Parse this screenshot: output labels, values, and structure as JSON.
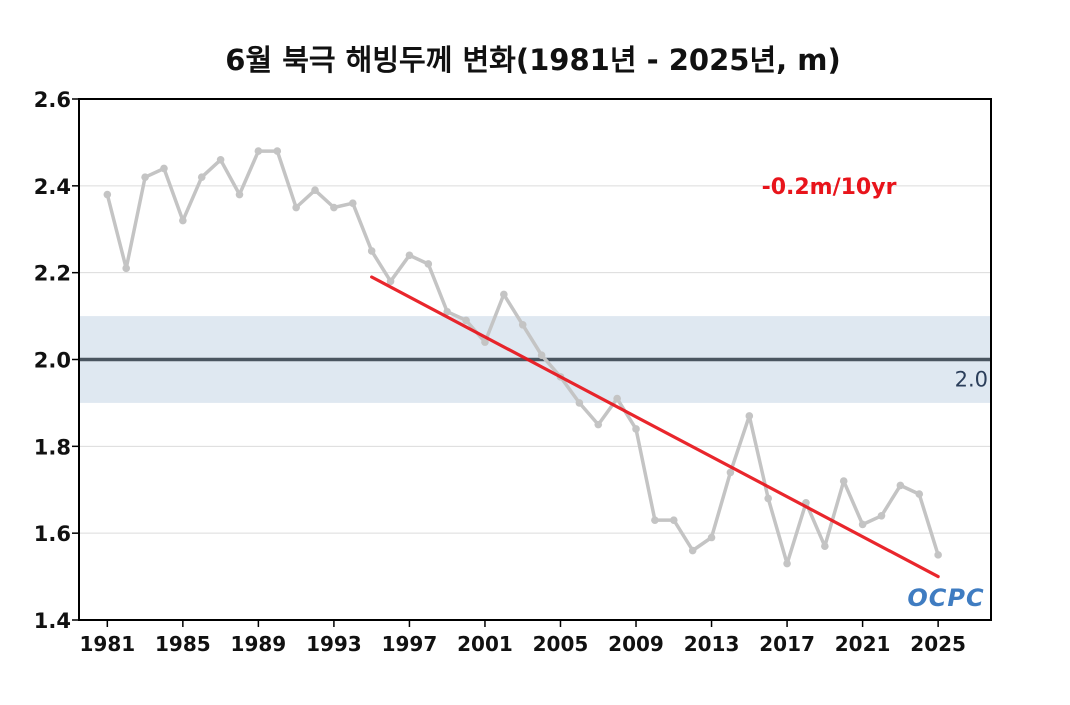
{
  "colors": {
    "series": "#c4c4c4",
    "trend": "#e8141b",
    "ref_line": "#4a5560",
    "band": "#dfe8f1",
    "grid": "#dcdcdc",
    "ref_label": "#2b3e5a",
    "logo": "#1e66b7"
  },
  "logo": {
    "text": "OCPC"
  },
  "chart_data": {
    "type": "line",
    "title": "6월 북극 해빙두께 변화(1981년 - 2025년, m)",
    "xlabel": "",
    "ylabel": "",
    "ylim": [
      1.4,
      2.6
    ],
    "xlim": [
      1979.5,
      2027.8
    ],
    "yticks": [
      "1.4",
      "1.6",
      "1.8",
      "2.0",
      "2.2",
      "2.4",
      "2.6"
    ],
    "xticks": [
      "1981",
      "1985",
      "1989",
      "1993",
      "1997",
      "2001",
      "2005",
      "2009",
      "2013",
      "2017",
      "2021",
      "2025"
    ],
    "grid": true,
    "x": [
      1981,
      1982,
      1983,
      1984,
      1985,
      1986,
      1987,
      1988,
      1989,
      1990,
      1991,
      1992,
      1993,
      1994,
      1995,
      1996,
      1997,
      1998,
      1999,
      2000,
      2001,
      2002,
      2003,
      2004,
      2005,
      2006,
      2007,
      2008,
      2009,
      2010,
      2011,
      2012,
      2013,
      2014,
      2015,
      2016,
      2017,
      2018,
      2019,
      2020,
      2021,
      2022,
      2023,
      2024,
      2025
    ],
    "series": [
      {
        "values": [
          2.38,
          2.21,
          2.42,
          2.44,
          2.32,
          2.42,
          2.46,
          2.38,
          2.48,
          2.48,
          2.35,
          2.39,
          2.35,
          2.36,
          2.25,
          2.18,
          2.24,
          2.22,
          2.11,
          2.09,
          2.04,
          2.15,
          2.08,
          2.01,
          1.96,
          1.9,
          1.85,
          1.91,
          1.84,
          1.63,
          1.63,
          1.56,
          1.59,
          1.74,
          1.87,
          1.68,
          1.53,
          1.67,
          1.57,
          1.72,
          1.62,
          1.64,
          1.71,
          1.69,
          1.55
        ]
      }
    ],
    "trend": {
      "label": "-0.2m/10yr",
      "x": [
        1995,
        2025
      ],
      "y": [
        2.19,
        1.5
      ]
    },
    "reference": {
      "value": 2.0,
      "label": "2.0",
      "band": [
        1.9,
        2.1
      ]
    }
  }
}
